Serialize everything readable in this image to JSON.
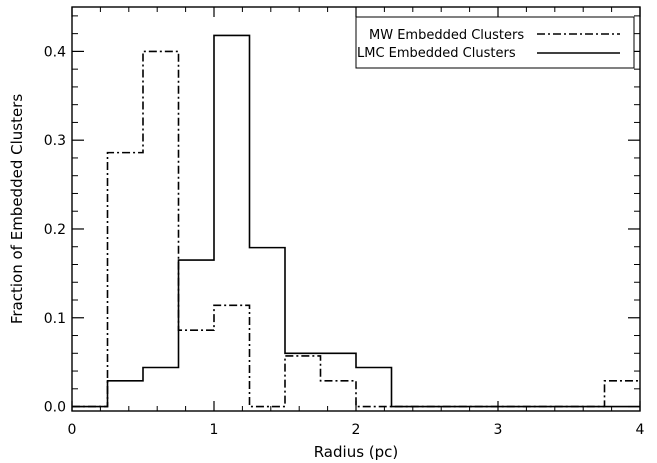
{
  "chart_data": {
    "type": "histogram",
    "xlabel": "Radius (pc)",
    "ylabel": "Fraction of Embedded Clusters",
    "xlim": [
      0,
      4
    ],
    "ylim": [
      -0.005,
      0.45
    ],
    "x_ticks": [
      0,
      1,
      2,
      3,
      4
    ],
    "x_tick_labels": [
      "0",
      "1",
      "2",
      "3",
      "4"
    ],
    "y_ticks": [
      0.0,
      0.1,
      0.2,
      0.3,
      0.4
    ],
    "y_tick_labels": [
      "0.0",
      "0.1",
      "0.2",
      "0.3",
      "0.4"
    ],
    "grid": false,
    "legend_position": "top-right",
    "bin_edges": [
      0,
      0.25,
      0.5,
      0.75,
      1.0,
      1.25,
      1.5,
      1.75,
      2.0,
      2.25,
      2.5,
      2.75,
      3.0,
      3.25,
      3.5,
      3.75,
      4.0
    ],
    "series": [
      {
        "name": "MW Embedded Clusters",
        "line_style": "dash-dot",
        "values": [
          0.0,
          0.286,
          0.4,
          0.086,
          0.114,
          0.0,
          0.057,
          0.029,
          0.0,
          0.0,
          0.0,
          0.0,
          0.0,
          0.0,
          0.0,
          0.029
        ]
      },
      {
        "name": "LMC Embedded Clusters",
        "line_style": "solid",
        "values": [
          0.0,
          0.029,
          0.044,
          0.165,
          0.418,
          0.179,
          0.06,
          0.06,
          0.044,
          0.0,
          0.0,
          0.0,
          0.0,
          0.0,
          0.0,
          0.0
        ]
      }
    ]
  }
}
